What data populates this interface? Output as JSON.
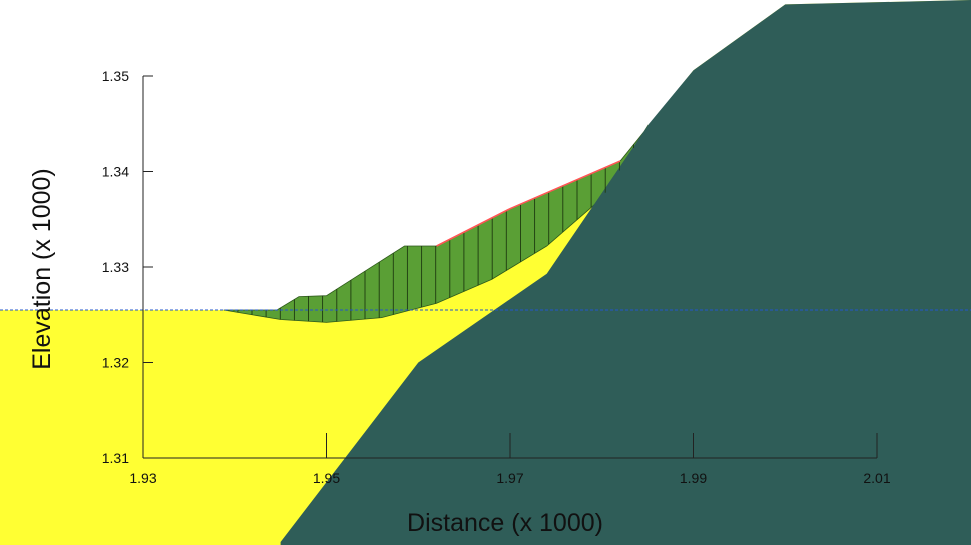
{
  "chart_data": {
    "type": "area",
    "title": "",
    "xlabel": "Distance (x  1000)",
    "ylabel": "Elevation (x  1000)",
    "xlim": [
      1.93,
      2.01
    ],
    "ylim": [
      1.31,
      1.35
    ],
    "x_ticks": [
      "1.93",
      "1.95",
      "1.97",
      "1.99",
      "2.01"
    ],
    "y_ticks": [
      "1.31",
      "1.32",
      "1.33",
      "1.34",
      "1.35"
    ],
    "grid": false,
    "legend": "none",
    "water_level": 1.3255,
    "ground_surface": [
      {
        "x": 1.9154,
        "y": 1.3255
      },
      {
        "x": 1.9446,
        "y": 1.3255
      },
      {
        "x": 1.947,
        "y": 1.3269
      },
      {
        "x": 1.95,
        "y": 1.327
      },
      {
        "x": 1.9585,
        "y": 1.3322
      },
      {
        "x": 1.962,
        "y": 1.3322
      },
      {
        "x": 1.97,
        "y": 1.3361
      },
      {
        "x": 1.982,
        "y": 1.3411
      },
      {
        "x": 1.99,
        "y": 1.3506
      },
      {
        "x": 2.0,
        "y": 1.3575
      }
    ],
    "bedrock_boundary": [
      {
        "x": 1.945,
        "y": 1.3012
      },
      {
        "x": 1.96,
        "y": 1.32
      },
      {
        "x": 1.974,
        "y": 1.3293
      },
      {
        "x": 1.985,
        "y": 1.3448
      },
      {
        "x": 1.99,
        "y": 1.3506
      }
    ],
    "slip_surface": [
      {
        "x": 1.9388,
        "y": 1.3255
      },
      {
        "x": 1.945,
        "y": 1.3245
      },
      {
        "x": 1.95,
        "y": 1.3242
      },
      {
        "x": 1.956,
        "y": 1.3247
      },
      {
        "x": 1.962,
        "y": 1.3262
      },
      {
        "x": 1.968,
        "y": 1.3287
      },
      {
        "x": 1.974,
        "y": 1.3322
      },
      {
        "x": 1.98,
        "y": 1.3372
      },
      {
        "x": 1.985,
        "y": 1.3448
      }
    ],
    "colors": {
      "soil": "#ffff33",
      "bedrock": "#2f5d58",
      "slip_mass": "#5a9f35",
      "water_line": "#2255cc",
      "surface_line": "#ff5555",
      "axis": "#222222"
    }
  }
}
